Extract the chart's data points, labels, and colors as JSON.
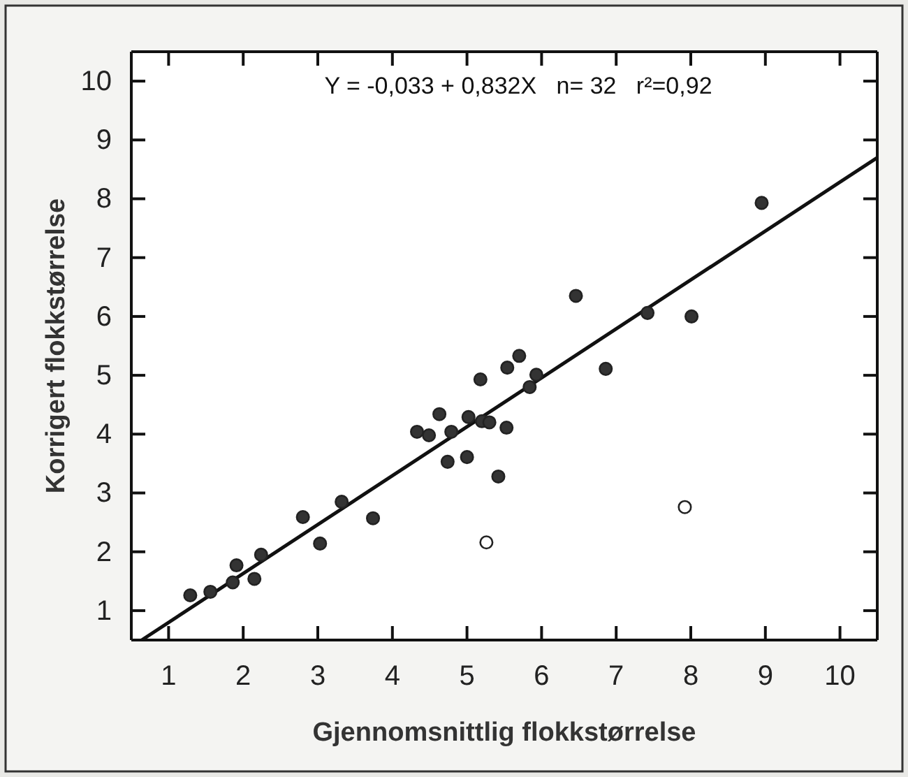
{
  "chart_data": {
    "type": "scatter",
    "xlabel": "Gjennomsnittlig flokkstørrelse",
    "ylabel": "Korrigert flokkstørrelse",
    "annotations": [
      "Y = -0,033 + 0,832X   n= 32   r²=0,92"
    ],
    "xlim": [
      0.5,
      10.5
    ],
    "ylim": [
      0.5,
      10.5
    ],
    "xticks": [
      1,
      2,
      3,
      4,
      5,
      6,
      7,
      8,
      9,
      10
    ],
    "yticks": [
      1,
      2,
      3,
      4,
      5,
      6,
      7,
      8,
      9,
      10
    ],
    "grid": false,
    "marker": "circle",
    "series": [
      {
        "color": "#333333",
        "x": [
          1.29,
          1.56,
          1.86,
          1.91,
          2.15,
          2.24,
          2.8,
          3.03,
          3.32,
          3.74,
          4.33,
          4.49,
          4.63,
          4.79,
          4.74,
          5.02,
          5.0,
          5.18,
          5.2,
          5.3,
          5.42,
          5.53,
          5.54,
          5.7,
          5.84,
          5.93,
          6.46,
          6.86,
          7.42,
          8.01,
          8.95
        ],
        "values": [
          1.26,
          1.32,
          1.48,
          1.77,
          1.54,
          1.95,
          2.59,
          2.14,
          2.85,
          2.57,
          4.04,
          3.98,
          4.34,
          4.04,
          3.53,
          4.29,
          3.61,
          4.93,
          4.22,
          4.2,
          3.28,
          4.11,
          5.13,
          5.33,
          4.8,
          5.01,
          6.35,
          5.11,
          6.06,
          6.0,
          7.93
        ]
      },
      {
        "color": "#ffffff",
        "x": [
          5.26,
          7.92
        ],
        "values": [
          2.16,
          2.76
        ]
      },
      {
        "type": "line",
        "marker": "none",
        "color": "#111111",
        "line_style": "solid",
        "x": [
          0.64,
          10.5
        ],
        "values": [
          0.5,
          8.7
        ]
      }
    ]
  }
}
